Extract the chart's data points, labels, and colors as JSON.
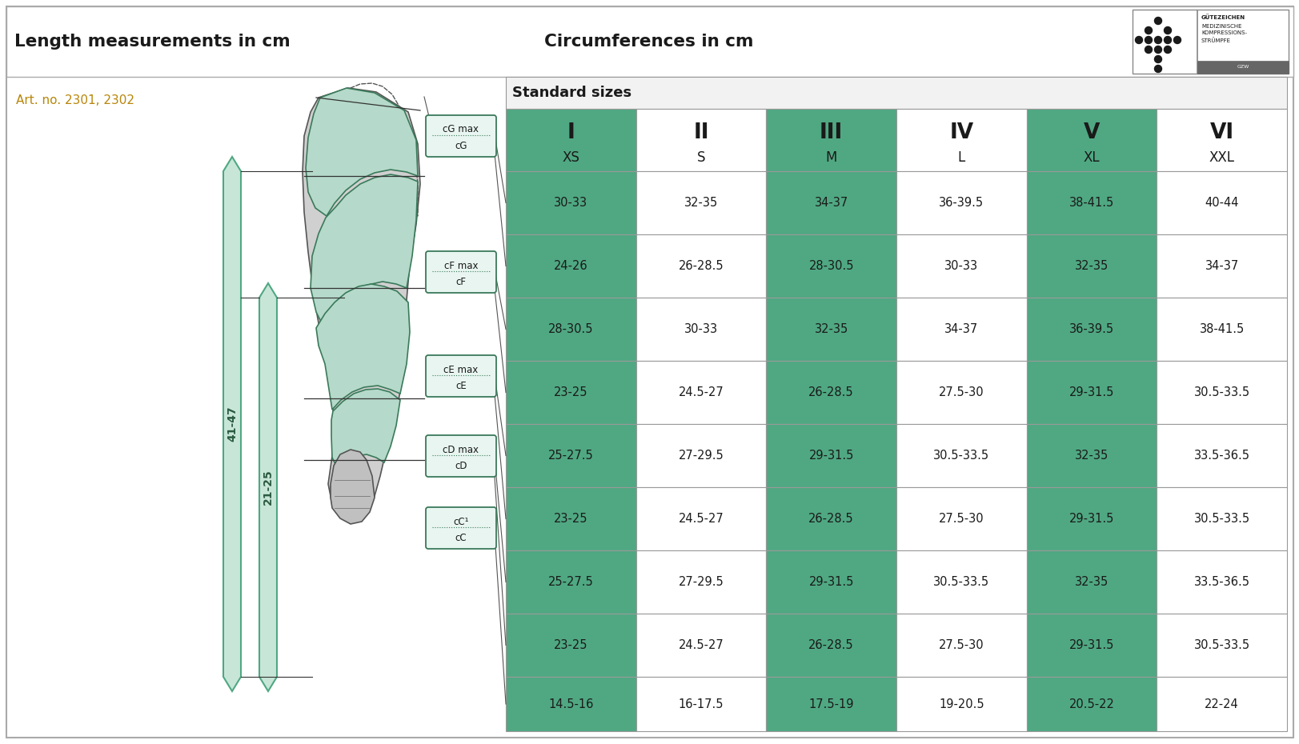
{
  "title_left": "Length measurements in cm",
  "title_right": "Circumferences in cm",
  "art_no": "Art. no. 2301, 2302",
  "standard_sizes_label": "Standard sizes",
  "col_headers": [
    [
      "I",
      "XS"
    ],
    [
      "II",
      "S"
    ],
    [
      "III",
      "M"
    ],
    [
      "IV",
      "L"
    ],
    [
      "V",
      "XL"
    ],
    [
      "VI",
      "XXL"
    ]
  ],
  "table_data": [
    [
      "30-33",
      "32-35",
      "34-37",
      "36-39.5",
      "38-41.5",
      "40-44"
    ],
    [
      "24-26",
      "26-28.5",
      "28-30.5",
      "30-33",
      "32-35",
      "34-37"
    ],
    [
      "28-30.5",
      "30-33",
      "32-35",
      "34-37",
      "36-39.5",
      "38-41.5"
    ],
    [
      "23-25",
      "24.5-27",
      "26-28.5",
      "27.5-30",
      "29-31.5",
      "30.5-33.5"
    ],
    [
      "25-27.5",
      "27-29.5",
      "29-31.5",
      "30.5-33.5",
      "32-35",
      "33.5-36.5"
    ],
    [
      "23-25",
      "24.5-27",
      "26-28.5",
      "27.5-30",
      "29-31.5",
      "30.5-33.5"
    ],
    [
      "25-27.5",
      "27-29.5",
      "29-31.5",
      "30.5-33.5",
      "32-35",
      "33.5-36.5"
    ],
    [
      "23-25",
      "24.5-27",
      "26-28.5",
      "27.5-30",
      "29-31.5",
      "30.5-33.5"
    ],
    [
      "14.5-16",
      "16-17.5",
      "17.5-19",
      "19-20.5",
      "20.5-22",
      "22-24"
    ]
  ],
  "green_col": "#4fa882",
  "green_col_light": "#b5d9ca",
  "green_col_header": "#4fa882",
  "white_col": "#ffffff",
  "border_col": "#999999",
  "bg": "#ffffff",
  "text_dark": "#1a1a1a",
  "art_color": "#b8860b",
  "col_green_idx": [
    0,
    2,
    4
  ],
  "length_labels": [
    "41-47",
    "21-25"
  ],
  "measure_labels": [
    "cG max",
    "cG",
    "cF max",
    "cF",
    "cE max",
    "cE",
    "cD max",
    "cD",
    "cC¹",
    "cC"
  ]
}
